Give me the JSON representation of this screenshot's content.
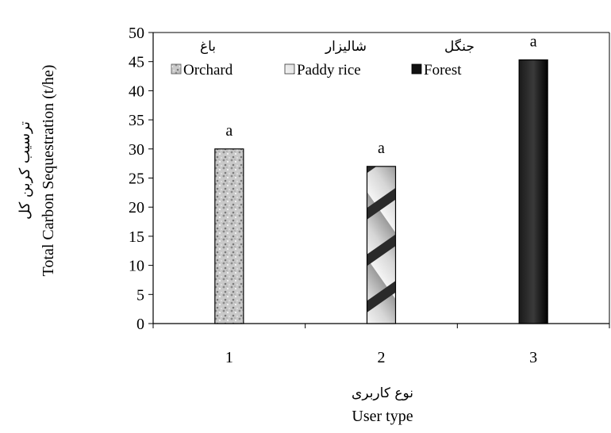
{
  "chart_data": {
    "type": "bar",
    "categories": [
      "1",
      "2",
      "3"
    ],
    "series": [
      {
        "name": "Orchard",
        "name_fa": "باغ",
        "values": [
          30,
          null,
          null
        ],
        "pattern": "speckled-gray"
      },
      {
        "name": "Paddy rice",
        "name_fa": "شالیزار",
        "values": [
          null,
          27,
          null
        ],
        "pattern": "diagonal-stripes"
      },
      {
        "name": "Forest",
        "name_fa": "جنگل",
        "values": [
          null,
          null,
          45.3
        ],
        "pattern": "solid-black"
      }
    ],
    "bar_labels": [
      "a",
      "a",
      "a"
    ],
    "ylabel": "Total Carbon Sequestration (t/he)",
    "ylabel_fa": "ترسیب کربن کل",
    "xlabel": "User type",
    "xlabel_fa": "نوع کاربری",
    "ylim": [
      0,
      50
    ],
    "yticks": [
      "0",
      "5",
      "10",
      "15",
      "20",
      "25",
      "30",
      "35",
      "40",
      "45",
      "50"
    ],
    "xticks": [
      "1",
      "2",
      "3"
    ],
    "grid": false,
    "legend_position": "top-center"
  }
}
